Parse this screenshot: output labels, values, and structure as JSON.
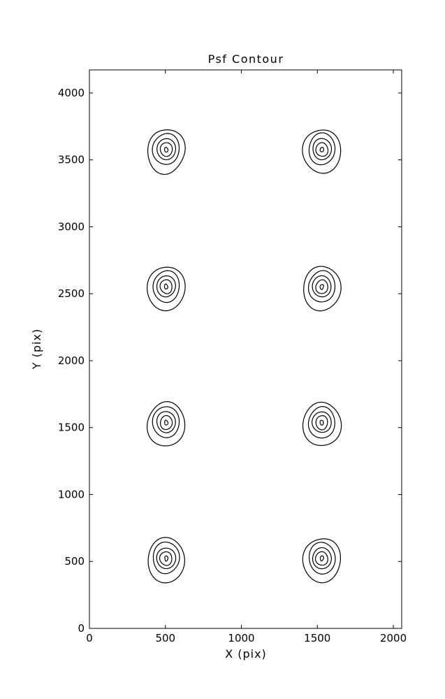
{
  "chart_data": {
    "type": "contour",
    "title": "Psf Contour",
    "xlabel": "X (pix)",
    "ylabel": "Y (pix)",
    "xlim": [
      0,
      2055
    ],
    "ylim": [
      0,
      4172
    ],
    "xticks": [
      0,
      500,
      1000,
      1500,
      2000
    ],
    "yticks": [
      0,
      500,
      1000,
      1500,
      2000,
      2500,
      3000,
      3500,
      4000
    ],
    "grid": false,
    "legend": "none",
    "line_color": "#000000",
    "background_color": "#ffffff",
    "tick_direction": "in",
    "spots": [
      {
        "x": 505,
        "y": 3580
      },
      {
        "x": 1530,
        "y": 3580
      },
      {
        "x": 505,
        "y": 2555
      },
      {
        "x": 1530,
        "y": 2555
      },
      {
        "x": 505,
        "y": 1540
      },
      {
        "x": 1530,
        "y": 1540
      },
      {
        "x": 505,
        "y": 525
      },
      {
        "x": 1530,
        "y": 525
      }
    ],
    "contour_levels": [
      {
        "rx": 122,
        "ry": 167
      },
      {
        "rx": 87,
        "ry": 117
      },
      {
        "rx": 62,
        "ry": 78
      },
      {
        "rx": 39,
        "ry": 52
      },
      {
        "rx": 11,
        "ry": 18
      }
    ]
  }
}
